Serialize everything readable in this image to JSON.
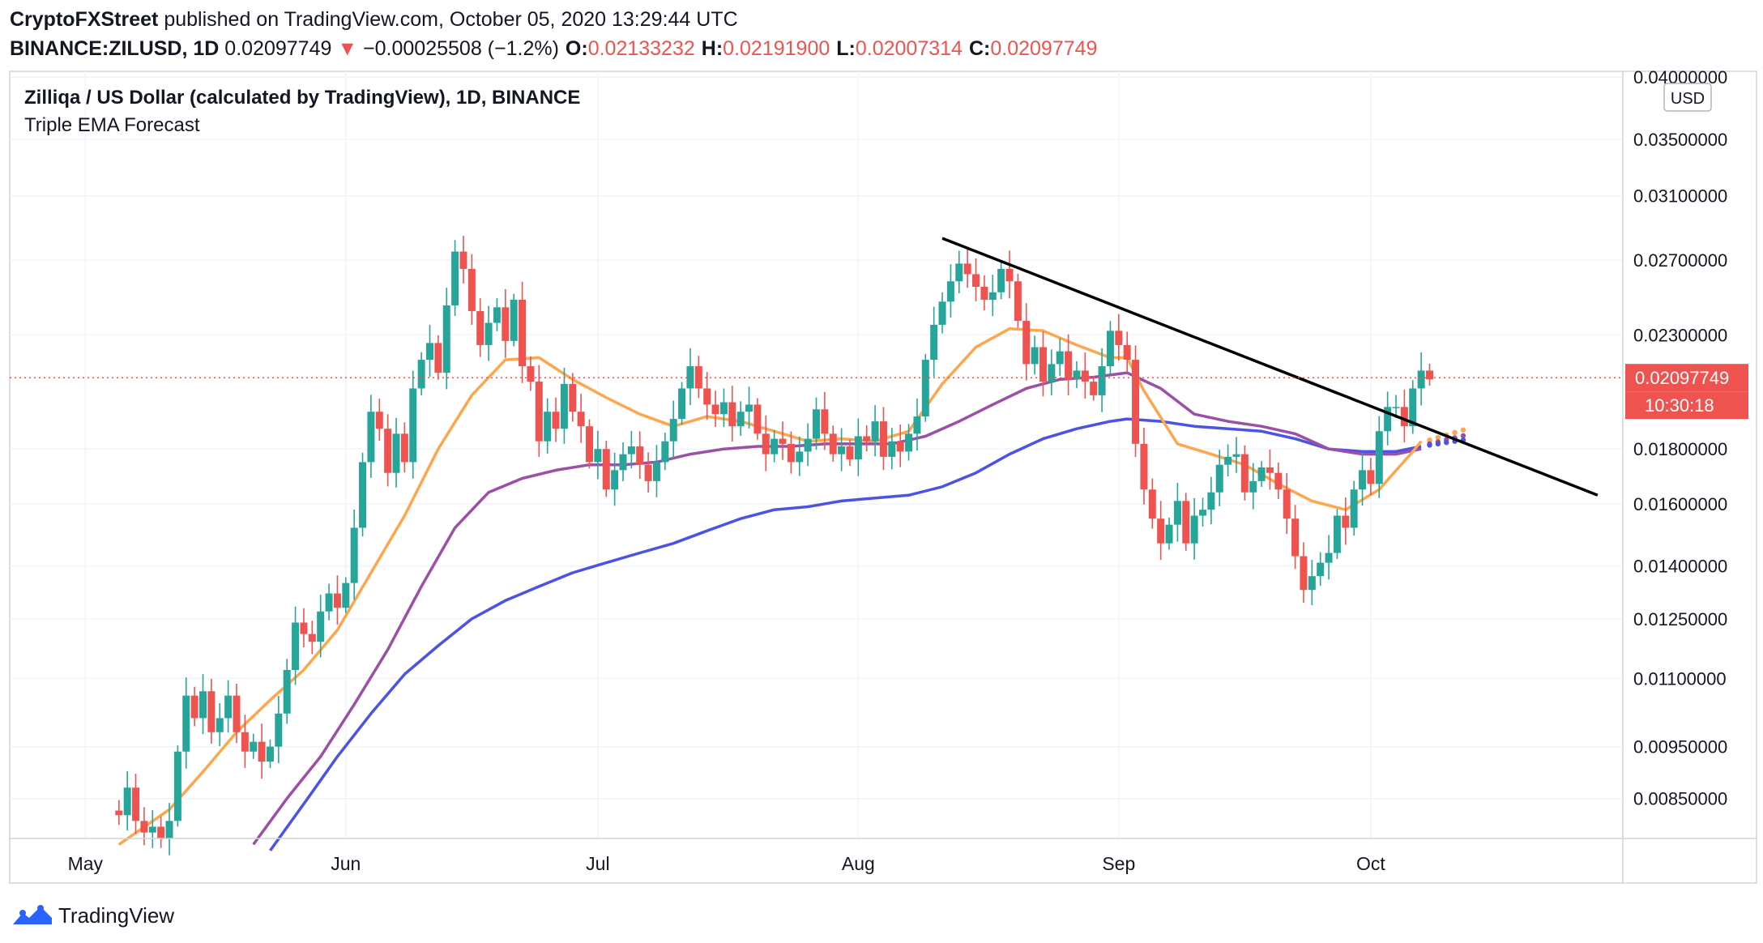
{
  "header": {
    "publisher": "CryptoFXStreet",
    "published_text": "published on TradingView.com, October 05, 2020 13:29:44 UTC",
    "symbol": "BINANCE:ZILUSD, 1D",
    "last": "0.02097749",
    "arrow": "▼",
    "change": "−0.00025508 (−1.2%)",
    "o_label": "O:",
    "o": "0.02133232",
    "h_label": "H:",
    "h": "0.02191900",
    "l_label": "L:",
    "l": "0.02007314",
    "c_label": "C:",
    "c": "0.02097749"
  },
  "legend": {
    "title": "Zilliqa / US Dollar (calculated by TradingView), 1D, BINANCE",
    "indicator": "Triple EMA Forecast"
  },
  "currency_badge": "USD",
  "price_badge": "0.02097749",
  "countdown_badge": "10:30:18",
  "footer": {
    "brand": "TradingView",
    "icon": "tradingview-logo-icon"
  },
  "colors": {
    "up": "#26a69a",
    "down": "#ef5350",
    "ema_fast": "#ffa64d",
    "ema_mid": "#9c4fa6",
    "ema_slow": "#4c52e3",
    "trendline": "#000000",
    "grid": "#f0f3fa"
  },
  "chart_data": {
    "type": "candlestick",
    "title": "Zilliqa / US Dollar (calculated by TradingView), 1D, BINANCE",
    "scale": "log",
    "ylim": [
      0.0078,
      0.0405
    ],
    "xlim": [
      "2020-04-22",
      "2020-10-31"
    ],
    "y_ticks": [
      0.0085,
      0.0095,
      0.011,
      0.0125,
      0.014,
      0.016,
      0.018,
      0.023,
      0.027,
      0.031,
      0.035,
      0.04
    ],
    "y_tick_labels": [
      "0.00850000",
      "0.00950000",
      "0.01100000",
      "0.01250000",
      "0.01400000",
      "0.01600000",
      "0.01800000",
      "0.02300000",
      "0.02700000",
      "0.03100000",
      "0.03500000",
      "0.04000000"
    ],
    "x_ticks": [
      {
        "label": "May",
        "date": "2020-05-01"
      },
      {
        "label": "Jun",
        "date": "2020-06-01"
      },
      {
        "label": "Jul",
        "date": "2020-07-01"
      },
      {
        "label": "Aug",
        "date": "2020-08-01"
      },
      {
        "label": "Sep",
        "date": "2020-09-01"
      },
      {
        "label": "Oct",
        "date": "2020-10-01"
      }
    ],
    "candles_start": "2020-05-05",
    "closes": [
      0.0082,
      0.0087,
      0.0081,
      0.0079,
      0.008,
      0.0078,
      0.0081,
      0.0094,
      0.0106,
      0.0101,
      0.0107,
      0.0098,
      0.0101,
      0.0106,
      0.0098,
      0.0094,
      0.0096,
      0.0092,
      0.0095,
      0.0102,
      0.0112,
      0.0124,
      0.0121,
      0.0119,
      0.0127,
      0.0132,
      0.0128,
      0.0135,
      0.0152,
      0.0175,
      0.0195,
      0.0188,
      0.0171,
      0.0186,
      0.0175,
      0.0205,
      0.0218,
      0.0226,
      0.0212,
      0.0245,
      0.0275,
      0.0265,
      0.0242,
      0.0225,
      0.0236,
      0.0244,
      0.0227,
      0.0248,
      0.0215,
      0.0208,
      0.0183,
      0.0195,
      0.0188,
      0.0207,
      0.0195,
      0.0189,
      0.0175,
      0.018,
      0.0165,
      0.0172,
      0.0178,
      0.0181,
      0.0174,
      0.0168,
      0.0175,
      0.0183,
      0.0192,
      0.0205,
      0.0215,
      0.0205,
      0.0198,
      0.0194,
      0.0199,
      0.0189,
      0.0195,
      0.0198,
      0.0186,
      0.0178,
      0.0184,
      0.0182,
      0.0175,
      0.0179,
      0.0184,
      0.0196,
      0.0186,
      0.0178,
      0.0181,
      0.0176,
      0.0185,
      0.0183,
      0.0191,
      0.0177,
      0.0183,
      0.0179,
      0.0186,
      0.0193,
      0.0218,
      0.0235,
      0.0247,
      0.0258,
      0.0268,
      0.0262,
      0.0255,
      0.0248,
      0.0252,
      0.0265,
      0.0258,
      0.0237,
      0.0216,
      0.0224,
      0.0208,
      0.0216,
      0.0222,
      0.0209,
      0.0213,
      0.0208,
      0.0202,
      0.0215,
      0.0232,
      0.0225,
      0.0218,
      0.0182,
      0.0165,
      0.0155,
      0.0147,
      0.0153,
      0.0161,
      0.0147,
      0.0156,
      0.0158,
      0.0164,
      0.0174,
      0.0177,
      0.0178,
      0.0164,
      0.0168,
      0.0173,
      0.0171,
      0.0165,
      0.0155,
      0.0143,
      0.0133,
      0.0137,
      0.0141,
      0.0144,
      0.0156,
      0.0152,
      0.0165,
      0.0172,
      0.0167,
      0.0187,
      0.0197,
      0.0197,
      0.0189,
      0.0205,
      0.0213,
      0.0209
    ],
    "ema_fast": [
      [
        0,
        0.0077
      ],
      [
        6,
        0.0083
      ],
      [
        10,
        0.009
      ],
      [
        14,
        0.0098
      ],
      [
        18,
        0.0105
      ],
      [
        22,
        0.0112
      ],
      [
        26,
        0.0122
      ],
      [
        30,
        0.0138
      ],
      [
        34,
        0.0156
      ],
      [
        38,
        0.018
      ],
      [
        42,
        0.0202
      ],
      [
        46,
        0.0218
      ],
      [
        50,
        0.0219
      ],
      [
        54,
        0.0209
      ],
      [
        58,
        0.0201
      ],
      [
        62,
        0.0194
      ],
      [
        66,
        0.0189
      ],
      [
        70,
        0.0193
      ],
      [
        74,
        0.0191
      ],
      [
        78,
        0.0187
      ],
      [
        82,
        0.0183
      ],
      [
        86,
        0.0184
      ],
      [
        90,
        0.0183
      ],
      [
        94,
        0.0187
      ],
      [
        98,
        0.0207
      ],
      [
        102,
        0.0224
      ],
      [
        106,
        0.0233
      ],
      [
        110,
        0.0232
      ],
      [
        114,
        0.0225
      ],
      [
        118,
        0.0219
      ],
      [
        120,
        0.0219
      ],
      [
        122,
        0.0204
      ],
      [
        126,
        0.0182
      ],
      [
        130,
        0.0178
      ],
      [
        134,
        0.0174
      ],
      [
        138,
        0.0167
      ],
      [
        142,
        0.0161
      ],
      [
        146,
        0.0158
      ],
      [
        150,
        0.0165
      ],
      [
        154,
        0.0179
      ],
      [
        155,
        0.0183
      ]
    ],
    "ema_mid": [
      [
        16,
        0.0077
      ],
      [
        20,
        0.0085
      ],
      [
        24,
        0.0093
      ],
      [
        28,
        0.0104
      ],
      [
        32,
        0.0117
      ],
      [
        36,
        0.0134
      ],
      [
        40,
        0.0152
      ],
      [
        44,
        0.0164
      ],
      [
        48,
        0.0169
      ],
      [
        52,
        0.0172
      ],
      [
        56,
        0.0174
      ],
      [
        60,
        0.0174
      ],
      [
        64,
        0.0175
      ],
      [
        68,
        0.0178
      ],
      [
        72,
        0.018
      ],
      [
        76,
        0.0181
      ],
      [
        80,
        0.0181
      ],
      [
        84,
        0.0182
      ],
      [
        88,
        0.0182
      ],
      [
        92,
        0.0182
      ],
      [
        96,
        0.0185
      ],
      [
        100,
        0.0191
      ],
      [
        104,
        0.0198
      ],
      [
        108,
        0.0205
      ],
      [
        112,
        0.0209
      ],
      [
        116,
        0.021
      ],
      [
        120,
        0.0212
      ],
      [
        124,
        0.0205
      ],
      [
        128,
        0.0194
      ],
      [
        132,
        0.0191
      ],
      [
        136,
        0.0189
      ],
      [
        140,
        0.0186
      ],
      [
        144,
        0.018
      ],
      [
        148,
        0.0178
      ],
      [
        152,
        0.0178
      ],
      [
        155,
        0.018
      ]
    ],
    "ema_slow": [
      [
        18,
        0.0076
      ],
      [
        22,
        0.0084
      ],
      [
        26,
        0.0093
      ],
      [
        30,
        0.0102
      ],
      [
        34,
        0.0111
      ],
      [
        38,
        0.0118
      ],
      [
        42,
        0.0125
      ],
      [
        46,
        0.013
      ],
      [
        50,
        0.0134
      ],
      [
        54,
        0.0138
      ],
      [
        58,
        0.0141
      ],
      [
        62,
        0.0144
      ],
      [
        66,
        0.0147
      ],
      [
        70,
        0.0151
      ],
      [
        74,
        0.0155
      ],
      [
        78,
        0.0158
      ],
      [
        82,
        0.0159
      ],
      [
        86,
        0.0161
      ],
      [
        90,
        0.0162
      ],
      [
        94,
        0.0163
      ],
      [
        98,
        0.0166
      ],
      [
        102,
        0.0171
      ],
      [
        106,
        0.0178
      ],
      [
        110,
        0.0184
      ],
      [
        114,
        0.0188
      ],
      [
        118,
        0.0191
      ],
      [
        120,
        0.0192
      ],
      [
        124,
        0.0191
      ],
      [
        128,
        0.0189
      ],
      [
        132,
        0.0188
      ],
      [
        136,
        0.0187
      ],
      [
        140,
        0.0184
      ],
      [
        144,
        0.018
      ],
      [
        148,
        0.0179
      ],
      [
        152,
        0.0179
      ],
      [
        155,
        0.0181
      ]
    ],
    "forecast": {
      "ema_fast": [
        [
          156,
          0.01835
        ],
        [
          157,
          0.01845
        ],
        [
          158,
          0.01855
        ],
        [
          159,
          0.01865
        ],
        [
          160,
          0.01875
        ]
      ],
      "ema_mid": [
        [
          156,
          0.0182
        ],
        [
          157,
          0.01828
        ],
        [
          158,
          0.01836
        ],
        [
          159,
          0.01844
        ],
        [
          160,
          0.01852
        ]
      ],
      "ema_slow": [
        [
          156,
          0.01815
        ],
        [
          157,
          0.0182
        ],
        [
          158,
          0.01825
        ],
        [
          159,
          0.0183
        ],
        [
          160,
          0.01835
        ]
      ]
    },
    "trendline": [
      [
        "2020-08-11",
        0.0283
      ],
      [
        "2020-10-28",
        0.0163
      ]
    ],
    "last_price": 0.02097749
  }
}
